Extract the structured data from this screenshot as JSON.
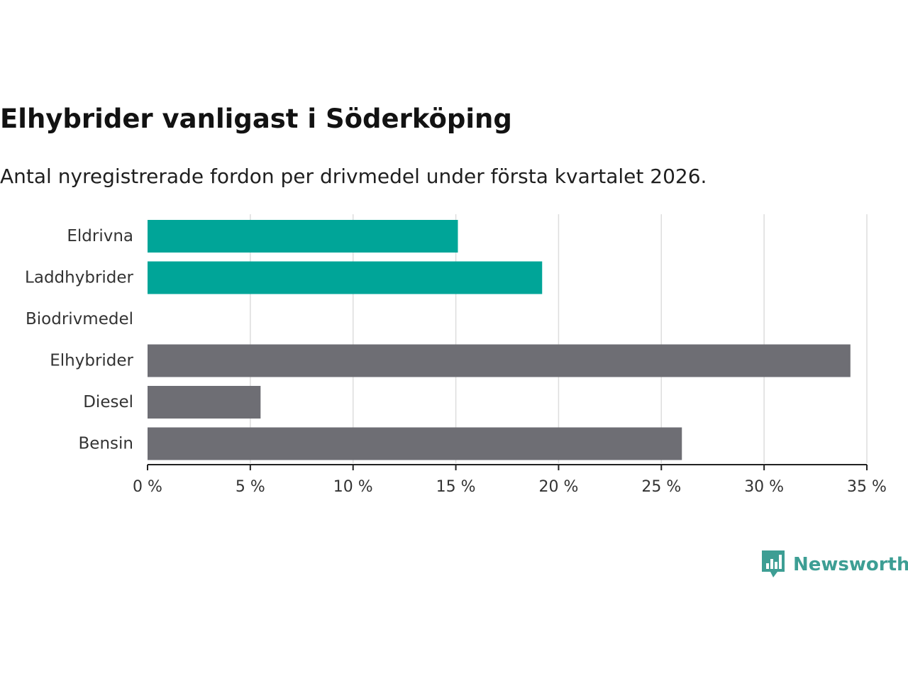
{
  "chart_data": {
    "type": "bar",
    "orientation": "horizontal",
    "title": "Elhybrider vanligast i Söderköping",
    "subtitle": "Antal nyregistrerade fordon per drivmedel under första kvartalet 2026.",
    "categories": [
      "Eldrivna",
      "Laddhybrider",
      "Biodrivmedel",
      "Elhybrider",
      "Diesel",
      "Bensin"
    ],
    "values": [
      15.1,
      19.2,
      0,
      34.2,
      5.5,
      26.0
    ],
    "bar_colors": [
      "#00a598",
      "#00a598",
      "#00a598",
      "#6e6e74",
      "#6e6e74",
      "#6e6e74"
    ],
    "xlim": [
      0,
      35
    ],
    "xticks": [
      0,
      5,
      10,
      15,
      20,
      25,
      30,
      35
    ],
    "xtick_labels": [
      "0 %",
      "5 %",
      "10 %",
      "15 %",
      "20 %",
      "25 %",
      "30 %",
      "35 %"
    ],
    "xlabel": "",
    "ylabel": "",
    "grid": "vertical",
    "grid_color": "#dddddd",
    "axis_color": "#222222"
  },
  "brand": {
    "name": "Newsworthy",
    "icon": "newsworthy-logo-icon",
    "color": "#3d9e94"
  }
}
